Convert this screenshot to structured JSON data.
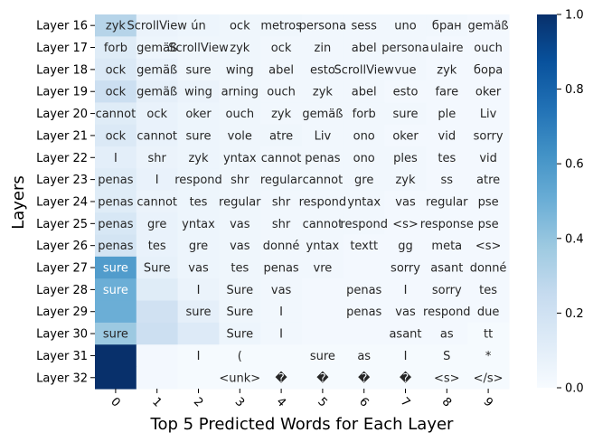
{
  "chart_data": {
    "type": "heatmap",
    "title": "",
    "xlabel": "Top 5 Predicted Words for Each Layer",
    "ylabel": "Layers",
    "x_ticks": [
      "0",
      "1",
      "2",
      "3",
      "4",
      "5",
      "6",
      "7",
      "8",
      "9"
    ],
    "y_ticks": [
      "Layer 16",
      "Layer 17",
      "Layer 18",
      "Layer 19",
      "Layer 20",
      "Layer 21",
      "Layer 22",
      "Layer 23",
      "Layer 24",
      "Layer 25",
      "Layer 26",
      "Layer 27",
      "Layer 28",
      "Layer 29",
      "Layer 30",
      "Layer 31",
      "Layer 32"
    ],
    "colorbar": {
      "ticks": [
        "0.0",
        "0.2",
        "0.4",
        "0.6",
        "0.8",
        "1.0"
      ],
      "range": [
        0,
        1
      ],
      "colormap": "Blues"
    },
    "annotations": [
      [
        "zyk",
        "ScrollView",
        "ún",
        "ock",
        "metros",
        "persona",
        "sess",
        "uno",
        "бран",
        "gemäß"
      ],
      [
        "forb",
        "gemäß",
        "ScrollView",
        "zyk",
        "ock",
        "zin",
        "abel",
        "persona",
        "ulaire",
        "ouch"
      ],
      [
        "ock",
        "gemäß",
        "sure",
        "wing",
        "abel",
        "esto",
        "ScrollView",
        "vue",
        "zyk",
        "бора"
      ],
      [
        "ock",
        "gemäß",
        "wing",
        "arning",
        "ouch",
        "zyk",
        "abel",
        "esto",
        "fare",
        "oker"
      ],
      [
        "cannot",
        "ock",
        "oker",
        "ouch",
        "zyk",
        "gemäß",
        "forb",
        "sure",
        "ple",
        "Liv"
      ],
      [
        "ock",
        "cannot",
        "sure",
        "vole",
        "atre",
        "Liv",
        "ono",
        "oker",
        "vid",
        "sorry"
      ],
      [
        "I",
        "shr",
        "zyk",
        "yntax",
        "cannot",
        "penas",
        "ono",
        "ples",
        "tes",
        "vid"
      ],
      [
        "penas",
        "I",
        "respond",
        "shr",
        "regular",
        "cannot",
        "gre",
        "zyk",
        "ss",
        "atre"
      ],
      [
        "penas",
        "cannot",
        "tes",
        "regular",
        "shr",
        "respond",
        "yntax",
        "vas",
        "regular",
        "pse"
      ],
      [
        "penas",
        "gre",
        "yntax",
        "vas",
        "shr",
        "cannot",
        "respond",
        "<s>",
        "response",
        "pse"
      ],
      [
        "penas",
        "tes",
        "gre",
        "vas",
        "donné",
        "yntax",
        "textt",
        "gg",
        "meta",
        "<s>"
      ],
      [
        "sure",
        "Sure",
        "vas",
        "tes",
        "penas",
        "vre",
        "",
        "sorry",
        "asant",
        "donné"
      ],
      [
        "sure",
        "",
        "I",
        "Sure",
        "vas",
        "",
        "penas",
        "I",
        "sorry",
        "tes"
      ],
      [
        "",
        "",
        "sure",
        "Sure",
        "I",
        "",
        "penas",
        "vas",
        "respond",
        "due"
      ],
      [
        "sure",
        "",
        "",
        "Sure",
        "I",
        "",
        "",
        "asant",
        "as",
        "tt"
      ],
      [
        "",
        "",
        "I",
        "(",
        "",
        "sure",
        "as",
        "I",
        "S",
        "*"
      ],
      [
        "",
        "",
        "",
        "<unk>",
        "�",
        "�",
        "�",
        "�",
        "<s>",
        "</s>"
      ]
    ],
    "values": [
      [
        0.3,
        0.06,
        0.05,
        0.04,
        0.04,
        0.03,
        0.03,
        0.03,
        0.03,
        0.02
      ],
      [
        0.12,
        0.05,
        0.04,
        0.04,
        0.03,
        0.03,
        0.03,
        0.03,
        0.02,
        0.02
      ],
      [
        0.14,
        0.07,
        0.04,
        0.04,
        0.03,
        0.03,
        0.03,
        0.03,
        0.02,
        0.02
      ],
      [
        0.22,
        0.09,
        0.06,
        0.04,
        0.03,
        0.03,
        0.03,
        0.02,
        0.02,
        0.02
      ],
      [
        0.12,
        0.07,
        0.05,
        0.04,
        0.03,
        0.03,
        0.03,
        0.03,
        0.02,
        0.02
      ],
      [
        0.14,
        0.07,
        0.05,
        0.04,
        0.04,
        0.03,
        0.03,
        0.02,
        0.02,
        0.02
      ],
      [
        0.1,
        0.06,
        0.05,
        0.04,
        0.03,
        0.03,
        0.03,
        0.03,
        0.02,
        0.02
      ],
      [
        0.12,
        0.07,
        0.05,
        0.04,
        0.03,
        0.03,
        0.03,
        0.03,
        0.02,
        0.02
      ],
      [
        0.12,
        0.06,
        0.05,
        0.04,
        0.03,
        0.03,
        0.03,
        0.02,
        0.02,
        0.02
      ],
      [
        0.16,
        0.07,
        0.05,
        0.04,
        0.03,
        0.03,
        0.03,
        0.02,
        0.02,
        0.02
      ],
      [
        0.18,
        0.07,
        0.05,
        0.04,
        0.03,
        0.03,
        0.02,
        0.02,
        0.02,
        0.02
      ],
      [
        0.58,
        0.08,
        0.05,
        0.04,
        0.03,
        0.03,
        0.02,
        0.02,
        0.02,
        0.02
      ],
      [
        0.5,
        0.12,
        0.06,
        0.04,
        0.03,
        0.02,
        0.02,
        0.02,
        0.02,
        0.02
      ],
      [
        0.5,
        0.2,
        0.09,
        0.04,
        0.03,
        0.02,
        0.02,
        0.02,
        0.02,
        0.02
      ],
      [
        0.38,
        0.22,
        0.13,
        0.05,
        0.03,
        0.02,
        0.02,
        0.02,
        0.02,
        0.01
      ],
      [
        1.0,
        0.02,
        0.01,
        0.01,
        0.01,
        0.01,
        0.01,
        0.01,
        0.01,
        0.01
      ],
      [
        1.0,
        0.02,
        0.01,
        0.01,
        0.01,
        0.01,
        0.01,
        0.01,
        0.01,
        0.01
      ]
    ]
  }
}
